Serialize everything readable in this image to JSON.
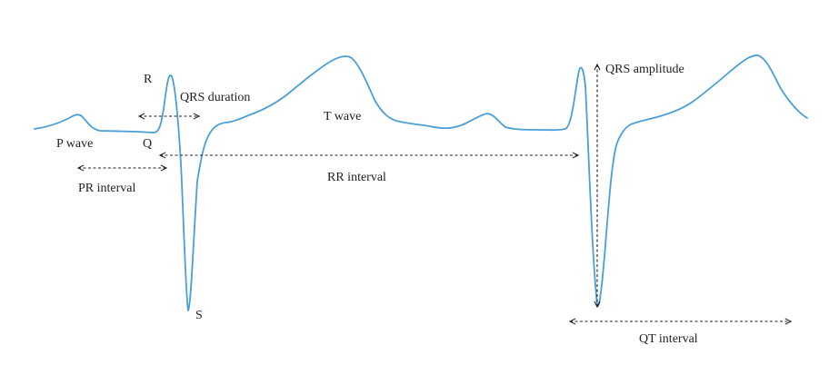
{
  "colors": {
    "ecg_trace": "#4a9fd8",
    "annotation": "#222222",
    "background": "#ffffff"
  },
  "labels": {
    "r": "R",
    "q": "Q",
    "s": "S",
    "p_wave": "P wave",
    "t_wave": "T wave",
    "qrs_duration": "QRS duration",
    "pr_interval": "PR interval",
    "rr_interval": "RR interval",
    "qrs_amplitude": "QRS amplitude",
    "qt_interval": "QT interval"
  }
}
